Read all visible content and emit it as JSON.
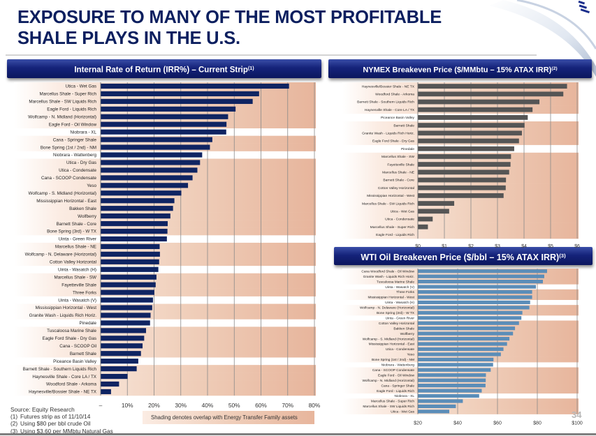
{
  "title": {
    "line1": "EXPOSURE TO MANY OF THE MOST PROFITABLE",
    "line2": "SHALE PLAYS IN THE U.S."
  },
  "colors": {
    "title": "#0c1f5f",
    "header_bg": "#15237a",
    "irr_bar": "#0f2462",
    "nymex_bar": "#555555",
    "wti_bar": "#5b8db8",
    "shading_light": "#fbece3",
    "shading_dark": "#e7b59c",
    "gridline": "#8a8a8a"
  },
  "footnotes": {
    "source": "Source: Equity Research",
    "items": [
      {
        "num": "(1)",
        "text": "Futures strip as of 11/10/14"
      },
      {
        "num": "(2)",
        "text": "Using $80 per bbl crude Oil"
      },
      {
        "num": "(3)",
        "text": "Using $3.60 per MMbtu Natural Gas"
      }
    ]
  },
  "shading_legend": "Shading denotes overlap with Energy Transfer Family assets",
  "page_number": "34",
  "chart_data": [
    {
      "id": "irr",
      "type": "bar",
      "orientation": "horizontal",
      "title": "Internal Rate of Return (IRR%) – Current Strip",
      "title_footnote": "(1)",
      "xlabel": "",
      "ylabel": "",
      "xlim": [
        0,
        80
      ],
      "tick_values": [
        0,
        10,
        20,
        30,
        40,
        50,
        60,
        70,
        80
      ],
      "tick_labels": [
        "–",
        "10%",
        "20%",
        "30%",
        "40%",
        "50%",
        "60%",
        "70%",
        "80%"
      ],
      "grid": true,
      "shading_note": "Shaded rows denote overlap with Energy Transfer Family assets",
      "categories": [
        "Utica - Wet Gas",
        "Marcellus Shale - Super Rich",
        "Marcellus Shale - SW Liquids Rich",
        "Eagle Ford - Liquids Rich",
        "Wolfcamp - N. Midland (Horizontal)",
        "Eagle Ford - Oil Window",
        "Niobrara - XL",
        "Cana - Springer Shale",
        "Bone Spring (1st / 2nd) - NM",
        "Niobrara - Wattenberg",
        "Utica - Dry Gas",
        "Utica - Condensate",
        "Cana - SCOOP Condensate",
        "Yeso",
        "Wolfcamp - S. Midland (Horizontal)",
        "Mississippian Horizontal - East",
        "Bakken Shale",
        "Wolfberry",
        "Barnett Shale - Core",
        "Bone Spring (3rd) - W TX",
        "Uinta - Green River",
        "Marcellus Shale - NE",
        "Wolfcamp - N. Delaware (Horizontal)",
        "Cotton Valley Horizontal",
        "Uinta - Wasatch (H)",
        "Marcellus Shale - SW",
        "Fayetteville Shale",
        "Three Forks",
        "Uinta - Wasatch (V)",
        "Mississippian Horizontal - West",
        "Granite Wash - Liquids Rich Horiz.",
        "Pinedale",
        "Tuscaloosa Marine Shale",
        "Eagle Ford Shale - Dry Gas",
        "Cana  - SCOOP Oil",
        "Barnett Shale",
        "Piceance Basin Valley",
        "Barnett Shale - Southern Liquids Rich",
        "Haynesville Shale - Core LA / TX",
        "Woodford Shale - Arkoma",
        "Haynesville/Bossier Shale - NE TX"
      ],
      "values": [
        70.5,
        59.3,
        56.9,
        50.5,
        47.7,
        47.1,
        47.0,
        41.8,
        40.9,
        38.0,
        37.2,
        36.2,
        34.4,
        32.7,
        30.2,
        27.6,
        27.1,
        26.1,
        25.1,
        25.0,
        24.8,
        22.1,
        22.2,
        21.9,
        21.6,
        20.9,
        20.6,
        20.1,
        19.6,
        19.3,
        18.7,
        18.5,
        17.0,
        16.3,
        15.7,
        15.1,
        14.1,
        13.5,
        10.1,
        6.9,
        3.9
      ],
      "shaded": [
        true,
        true,
        true,
        true,
        true,
        true,
        false,
        true,
        true,
        false,
        true,
        true,
        true,
        true,
        true,
        true,
        true,
        true,
        true,
        true,
        false,
        true,
        true,
        true,
        false,
        true,
        true,
        true,
        false,
        true,
        true,
        false,
        true,
        true,
        true,
        true,
        false,
        true,
        true,
        true,
        true
      ]
    },
    {
      "id": "nymex",
      "type": "bar",
      "orientation": "horizontal",
      "title": "NYMEX Breakeven Price ($/MMbtu – 15% ATAX IRR)",
      "title_footnote": "(2)",
      "xlabel": "",
      "ylabel": "",
      "xlim": [
        0,
        6
      ],
      "tick_values": [
        0,
        1,
        2,
        3,
        4,
        5,
        6
      ],
      "tick_labels": [
        "$0",
        "$1",
        "$2",
        "$3",
        "$4",
        "$5",
        "$6"
      ],
      "grid": true,
      "categories": [
        "Haynesville/Bossier Shale - NE TX",
        "Woodford Shale - Arkoma",
        "Barnett Shale - Southern Liquids Rich",
        "Haynesville Shale - Core LA / TX",
        "Piceance Basin Valley",
        "Barnett Shale",
        "Granite Wash - Liquids Rich Horiz.",
        "Eagle Ford Shale - Dry Gas",
        "Pinedale",
        "Marcellus Shale - SW",
        "Fayetteville Shale",
        "Marcellus Shale - NE",
        "Barnett Shale - Core",
        "Cotton Valley Horizontal",
        "Mississippian Horizontal - West",
        "Marcellus Shale - SW Liquids Rich",
        "Utica - Wet Gas",
        "Utica - Condensate",
        "Marcellus Shale - Super Rich",
        "Eagle Ford - Liquids Rich"
      ],
      "values": [
        5.62,
        5.48,
        4.58,
        4.32,
        4.14,
        4.02,
        3.92,
        3.81,
        3.63,
        3.51,
        3.49,
        3.44,
        3.32,
        3.31,
        3.23,
        1.37,
        1.18,
        0.56,
        0.38,
        0.0
      ],
      "shaded": [
        true,
        true,
        true,
        true,
        false,
        true,
        true,
        true,
        false,
        true,
        true,
        true,
        true,
        true,
        true,
        true,
        true,
        true,
        true,
        true
      ]
    },
    {
      "id": "wti",
      "type": "bar",
      "orientation": "horizontal",
      "title": "WTI Oil Breakeven Price ($/bbl – 15% ATAX IRR)",
      "title_footnote": "(3)",
      "xlabel": "",
      "ylabel": "",
      "xlim": [
        20,
        100
      ],
      "tick_values": [
        20,
        40,
        60,
        80,
        100
      ],
      "tick_labels": [
        "$20",
        "$40",
        "$60",
        "$80",
        "$100"
      ],
      "grid": true,
      "categories": [
        "Cana Woodford Shale - Oil Window",
        "Granite Wash - Liquids Rich Horiz.",
        "Tuscaloosa Marine Shale",
        "Uinta - Wasatch (V)",
        "Three Forks",
        "Mississippian Horizontal - West",
        "Uinta - Wasatch (H)",
        "Wolfcamp - N. Delaware (Horizontal)",
        "Bone Spring (3rd) - W TX",
        "Uinta - Green River",
        "Cotton Valley Horizontal",
        "Bakken Shale",
        "Wolfberry",
        "Wolfcamp - S. Midland (Horizontal)",
        "Mississippian Horizontal - East",
        "Utica - Condensate",
        "Yeso",
        "Bone Spring (1st / 2nd) - NM",
        "Niobrara - Wattenberg",
        "Cana - SCOOP Condensate",
        "Eagle Ford - Oil Window",
        "Wolfcamp - N. Midland (Horizontal)",
        "Cana - Springer Shale",
        "Eagle Ford - Liquids Rich",
        "Niobrara - XL",
        "Marcellus Shale - Super Rich",
        "Marcellus Shale - SW Liquids Rich",
        "Utica - Wet Gas"
      ],
      "values": [
        84.9,
        83.5,
        82.8,
        79.3,
        77.4,
        77.4,
        76.4,
        76.0,
        72.5,
        72.0,
        70.8,
        68.8,
        67.8,
        66.0,
        64.8,
        63.0,
        61.7,
        58.0,
        57.8,
        56.6,
        54.2,
        54.1,
        54.0,
        52.1,
        50.8,
        42.6,
        39.1,
        35.8
      ],
      "shaded": [
        true,
        true,
        true,
        false,
        true,
        true,
        false,
        true,
        true,
        false,
        true,
        true,
        true,
        true,
        true,
        true,
        true,
        true,
        false,
        true,
        true,
        true,
        true,
        true,
        false,
        true,
        true,
        true
      ]
    }
  ]
}
